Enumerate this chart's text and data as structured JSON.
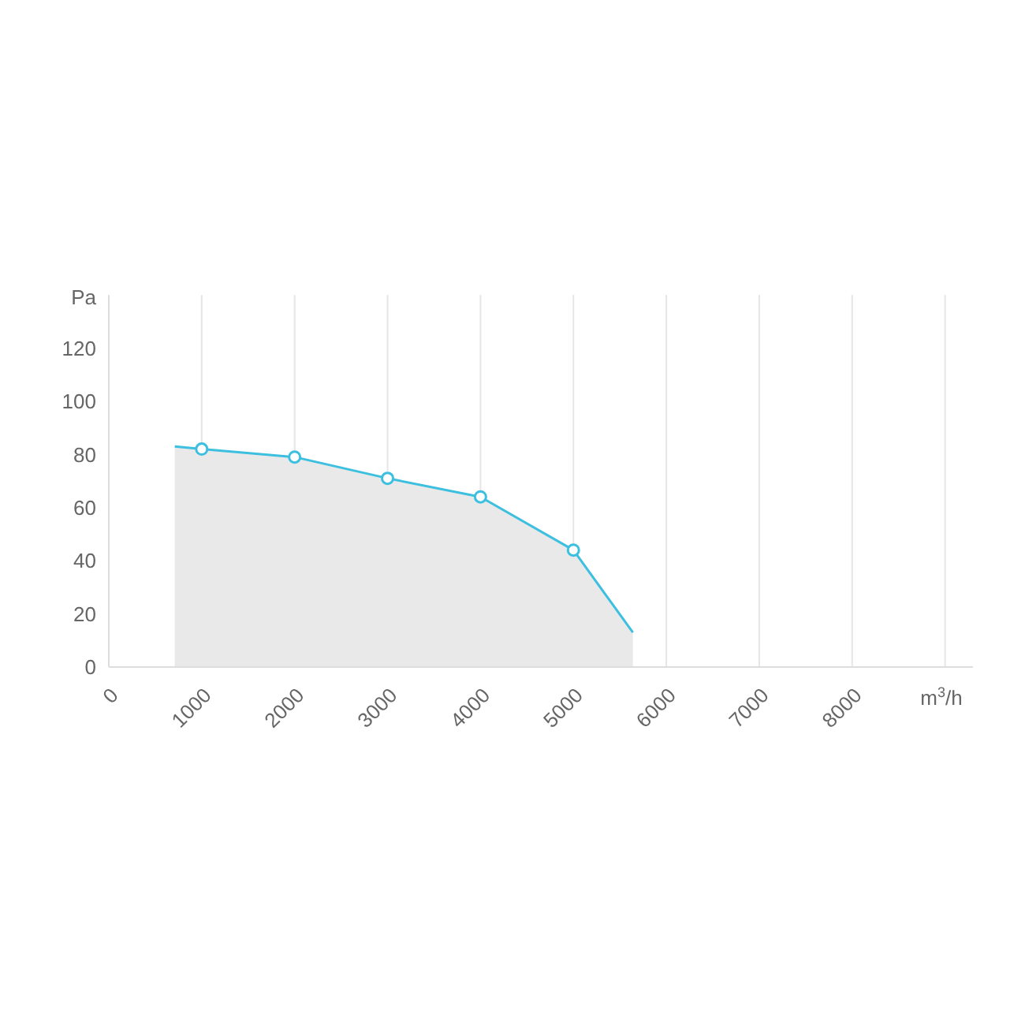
{
  "chart_data": {
    "type": "area",
    "xlabel": "m$^{3}$/h",
    "ylabel": "Pa",
    "xlim": [
      0,
      9300
    ],
    "xticks": [
      0,
      1000,
      2000,
      3000,
      4000,
      5000,
      6000,
      7000,
      8000,
      {
        "value": 9000,
        "label": null
      }
    ],
    "ylim": [
      0,
      140
    ],
    "yticks": [
      0,
      20,
      40,
      60,
      80,
      100,
      120
    ],
    "grid": "x",
    "legend": false,
    "series": [
      {
        "color": "#3dbfe0",
        "marker": "none",
        "x": [
          710,
          1000,
          2000,
          3000,
          4000,
          5000,
          5640
        ],
        "values": [
          83,
          82,
          79,
          71,
          64,
          44,
          13
        ]
      },
      {
        "type": "scatter",
        "color": "#3dbfe0",
        "marker": "circle",
        "x": [
          1000,
          2000,
          3000,
          4000,
          5000
        ],
        "values": [
          82,
          79,
          71,
          64,
          44
        ]
      }
    ]
  }
}
